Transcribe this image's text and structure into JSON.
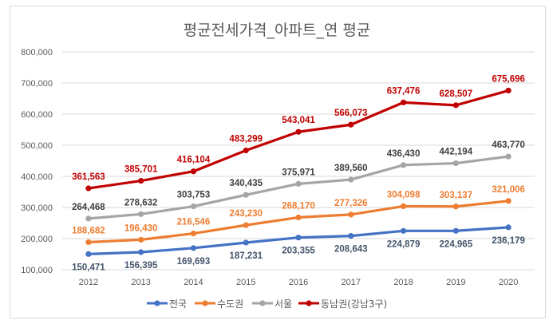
{
  "chart_data": {
    "type": "line",
    "title": "평균전세가격_아파트_연 평균",
    "categories": [
      "2012",
      "2013",
      "2014",
      "2015",
      "2016",
      "2017",
      "2018",
      "2019",
      "2020"
    ],
    "ylim": [
      100000,
      800000
    ],
    "yticks": [
      "100,000",
      "200,000",
      "300,000",
      "400,000",
      "500,000",
      "600,000",
      "700,000",
      "800,000"
    ],
    "grid": true,
    "legend": "bottom",
    "series": [
      {
        "name": "전국",
        "color": "#4472c4",
        "label_color": "#44546a",
        "label_pos": "below",
        "values": [
          150471,
          156395,
          169693,
          187231,
          203355,
          208643,
          224879,
          224965,
          236179
        ],
        "labels": [
          "150,471",
          "156,395",
          "169,693",
          "187,231",
          "203,355",
          "208,643",
          "224,879",
          "224,965",
          "236,179"
        ]
      },
      {
        "name": "수도권",
        "color": "#ed7d31",
        "label_color": "#ed7d31",
        "label_pos": "above",
        "values": [
          188682,
          196430,
          216546,
          243230,
          268170,
          277326,
          304098,
          303137,
          321006
        ],
        "labels": [
          "188,682",
          "196,430",
          "216,546",
          "243,230",
          "268,170",
          "277,326",
          "304,098",
          "303,137",
          "321,006"
        ]
      },
      {
        "name": "서울",
        "color": "#a5a5a5",
        "label_color": "#404040",
        "label_pos": "above",
        "values": [
          264468,
          278632,
          303753,
          340435,
          375971,
          389560,
          436430,
          442194,
          463770
        ],
        "labels": [
          "264,468",
          "278,632",
          "303,753",
          "340,435",
          "375,971",
          "389,560",
          "436,430",
          "442,194",
          "463,770"
        ]
      },
      {
        "name": "동남권(강남3구)",
        "color": "#c00000",
        "label_color": "#c00000",
        "label_pos": "above",
        "values": [
          361563,
          385701,
          416104,
          483299,
          543041,
          566073,
          637476,
          628507,
          675696
        ],
        "labels": [
          "361,563",
          "385,701",
          "416,104",
          "483,299",
          "543,041",
          "566,073",
          "637,476",
          "628,507",
          "675,696"
        ]
      }
    ]
  }
}
